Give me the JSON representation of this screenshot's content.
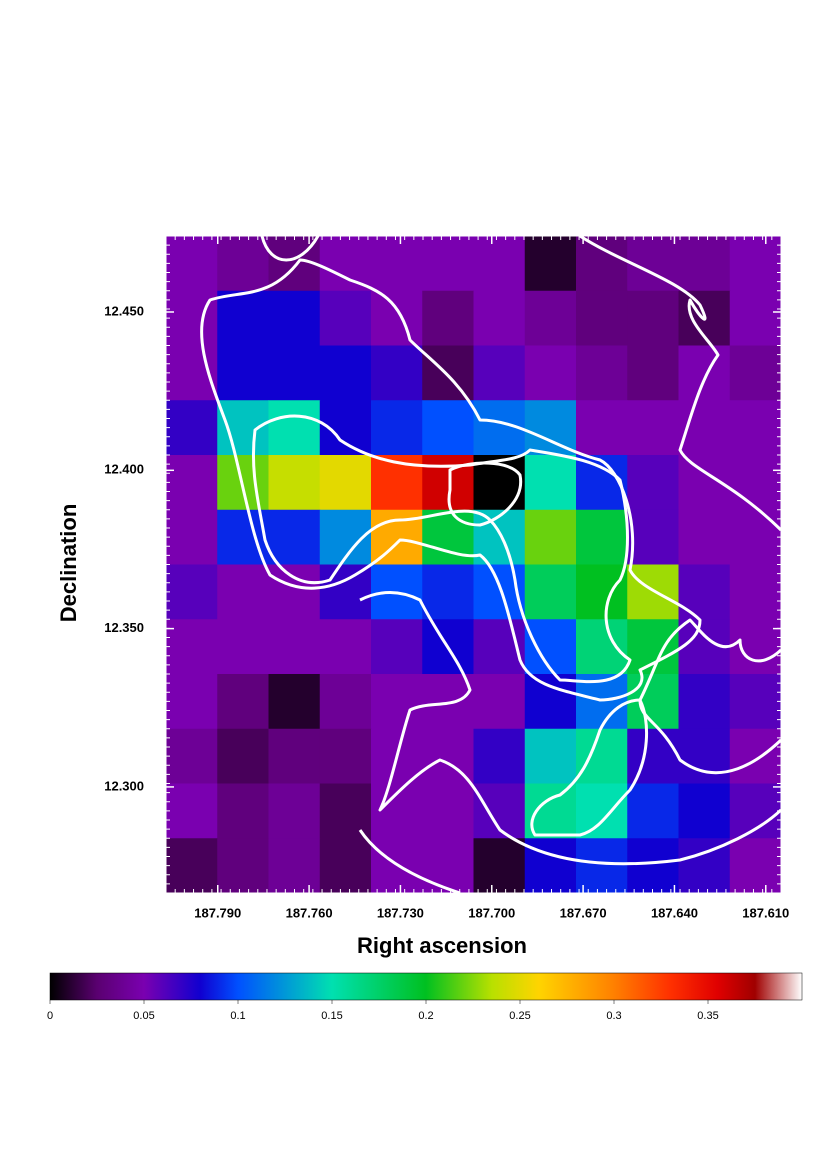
{
  "chart_data": {
    "type": "heatmap",
    "x_label": "Right ascension",
    "y_label": "Declination",
    "xlim": [
      187.807,
      187.605
    ],
    "ylim": [
      12.2665,
      12.474
    ],
    "xticks": [
      {
        "value": 187.79,
        "label": "187.790"
      },
      {
        "value": 187.76,
        "label": "187.760"
      },
      {
        "value": 187.73,
        "label": "187.730"
      },
      {
        "value": 187.7,
        "label": "187.700"
      },
      {
        "value": 187.67,
        "label": "187.670"
      },
      {
        "value": 187.64,
        "label": "187.640"
      },
      {
        "value": 187.61,
        "label": "187.610"
      }
    ],
    "yticks": [
      {
        "value": 12.3,
        "label": "12.300"
      },
      {
        "value": 12.35,
        "label": "12.350"
      },
      {
        "value": 12.4,
        "label": "12.400"
      },
      {
        "value": 12.45,
        "label": "12.450"
      }
    ],
    "z": [
      [
        0.05,
        0.04,
        0.03,
        0.05,
        0.05,
        0.05,
        0.05,
        0.01,
        0.03,
        0.04,
        0.04,
        0.05
      ],
      [
        0.05,
        0.08,
        0.08,
        0.06,
        0.05,
        0.03,
        0.05,
        0.04,
        0.03,
        0.03,
        0.02,
        0.05
      ],
      [
        0.05,
        0.08,
        0.08,
        0.08,
        0.07,
        0.02,
        0.06,
        0.05,
        0.04,
        0.03,
        0.05,
        0.04
      ],
      [
        0.07,
        0.14,
        0.15,
        0.08,
        0.09,
        0.1,
        0.11,
        0.12,
        0.05,
        0.05,
        0.05,
        0.05
      ],
      [
        0.05,
        0.22,
        0.24,
        0.25,
        0.33,
        0.36,
        0.0,
        0.15,
        0.09,
        0.06,
        0.05,
        0.05
      ],
      [
        0.05,
        0.09,
        0.09,
        0.12,
        0.28,
        0.19,
        0.14,
        0.22,
        0.19,
        0.06,
        0.05,
        0.05
      ],
      [
        0.06,
        0.05,
        0.05,
        0.07,
        0.1,
        0.09,
        0.1,
        0.18,
        0.2,
        0.23,
        0.06,
        0.05
      ],
      [
        0.05,
        0.05,
        0.05,
        0.05,
        0.06,
        0.08,
        0.06,
        0.1,
        0.17,
        0.19,
        0.06,
        0.05
      ],
      [
        0.05,
        0.03,
        0.01,
        0.04,
        0.05,
        0.05,
        0.05,
        0.08,
        0.11,
        0.18,
        0.07,
        0.06
      ],
      [
        0.04,
        0.02,
        0.03,
        0.03,
        0.05,
        0.05,
        0.07,
        0.14,
        0.16,
        0.07,
        0.07,
        0.05
      ],
      [
        0.05,
        0.03,
        0.04,
        0.02,
        0.05,
        0.05,
        0.06,
        0.16,
        0.15,
        0.09,
        0.08,
        0.06
      ],
      [
        0.02,
        0.03,
        0.04,
        0.02,
        0.05,
        0.05,
        0.01,
        0.08,
        0.09,
        0.08,
        0.07,
        0.05
      ]
    ],
    "zlim": [
      0,
      0.4
    ],
    "zticks": [
      0,
      0.05,
      0.1,
      0.15,
      0.2,
      0.25,
      0.3,
      0.35
    ],
    "colormap": [
      [
        0,
        "#000000"
      ],
      [
        0.025,
        "#5a0070"
      ],
      [
        0.05,
        "#7a00b0"
      ],
      [
        0.08,
        "#1000d0"
      ],
      [
        0.1,
        "#0050ff"
      ],
      [
        0.15,
        "#00e0b0"
      ],
      [
        0.2,
        "#00c020"
      ],
      [
        0.235,
        "#b8e000"
      ],
      [
        0.26,
        "#ffd400"
      ],
      [
        0.3,
        "#ff8000"
      ],
      [
        0.33,
        "#ff3000"
      ],
      [
        0.355,
        "#e00000"
      ],
      [
        0.375,
        "#a00000"
      ],
      [
        0.4,
        "#ffffff"
      ]
    ]
  }
}
